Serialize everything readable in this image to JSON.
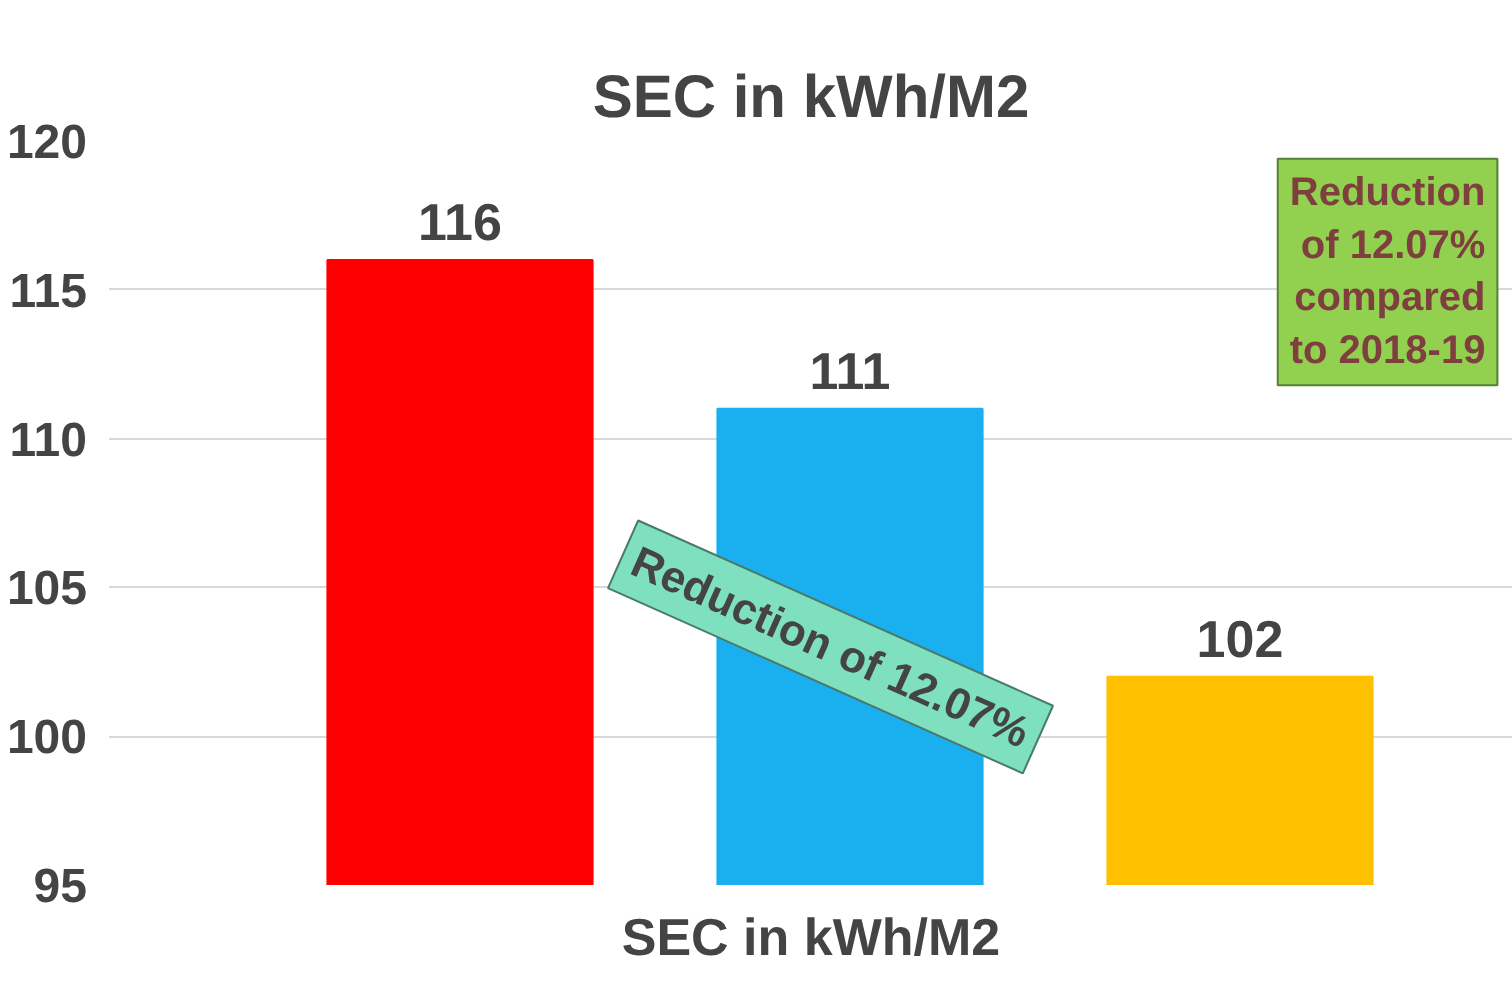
{
  "chart_data": {
    "type": "bar",
    "title": "SEC in kWh/M2",
    "xlabel": "SEC in kWh/M2",
    "categories": [
      null,
      null,
      null
    ],
    "values": [
      116,
      111,
      102
    ],
    "colors": [
      "#ff0000",
      "#1ab0ef",
      "#ffc000"
    ],
    "ylim": [
      95,
      120
    ],
    "yticks": [
      95,
      100,
      105,
      110,
      115,
      120
    ],
    "grid": "y",
    "data_labels": true,
    "annotations": [
      "Reduction\nof 12.07%\ncompared\nto 2018-19",
      "Reduction of 12.07%"
    ]
  }
}
